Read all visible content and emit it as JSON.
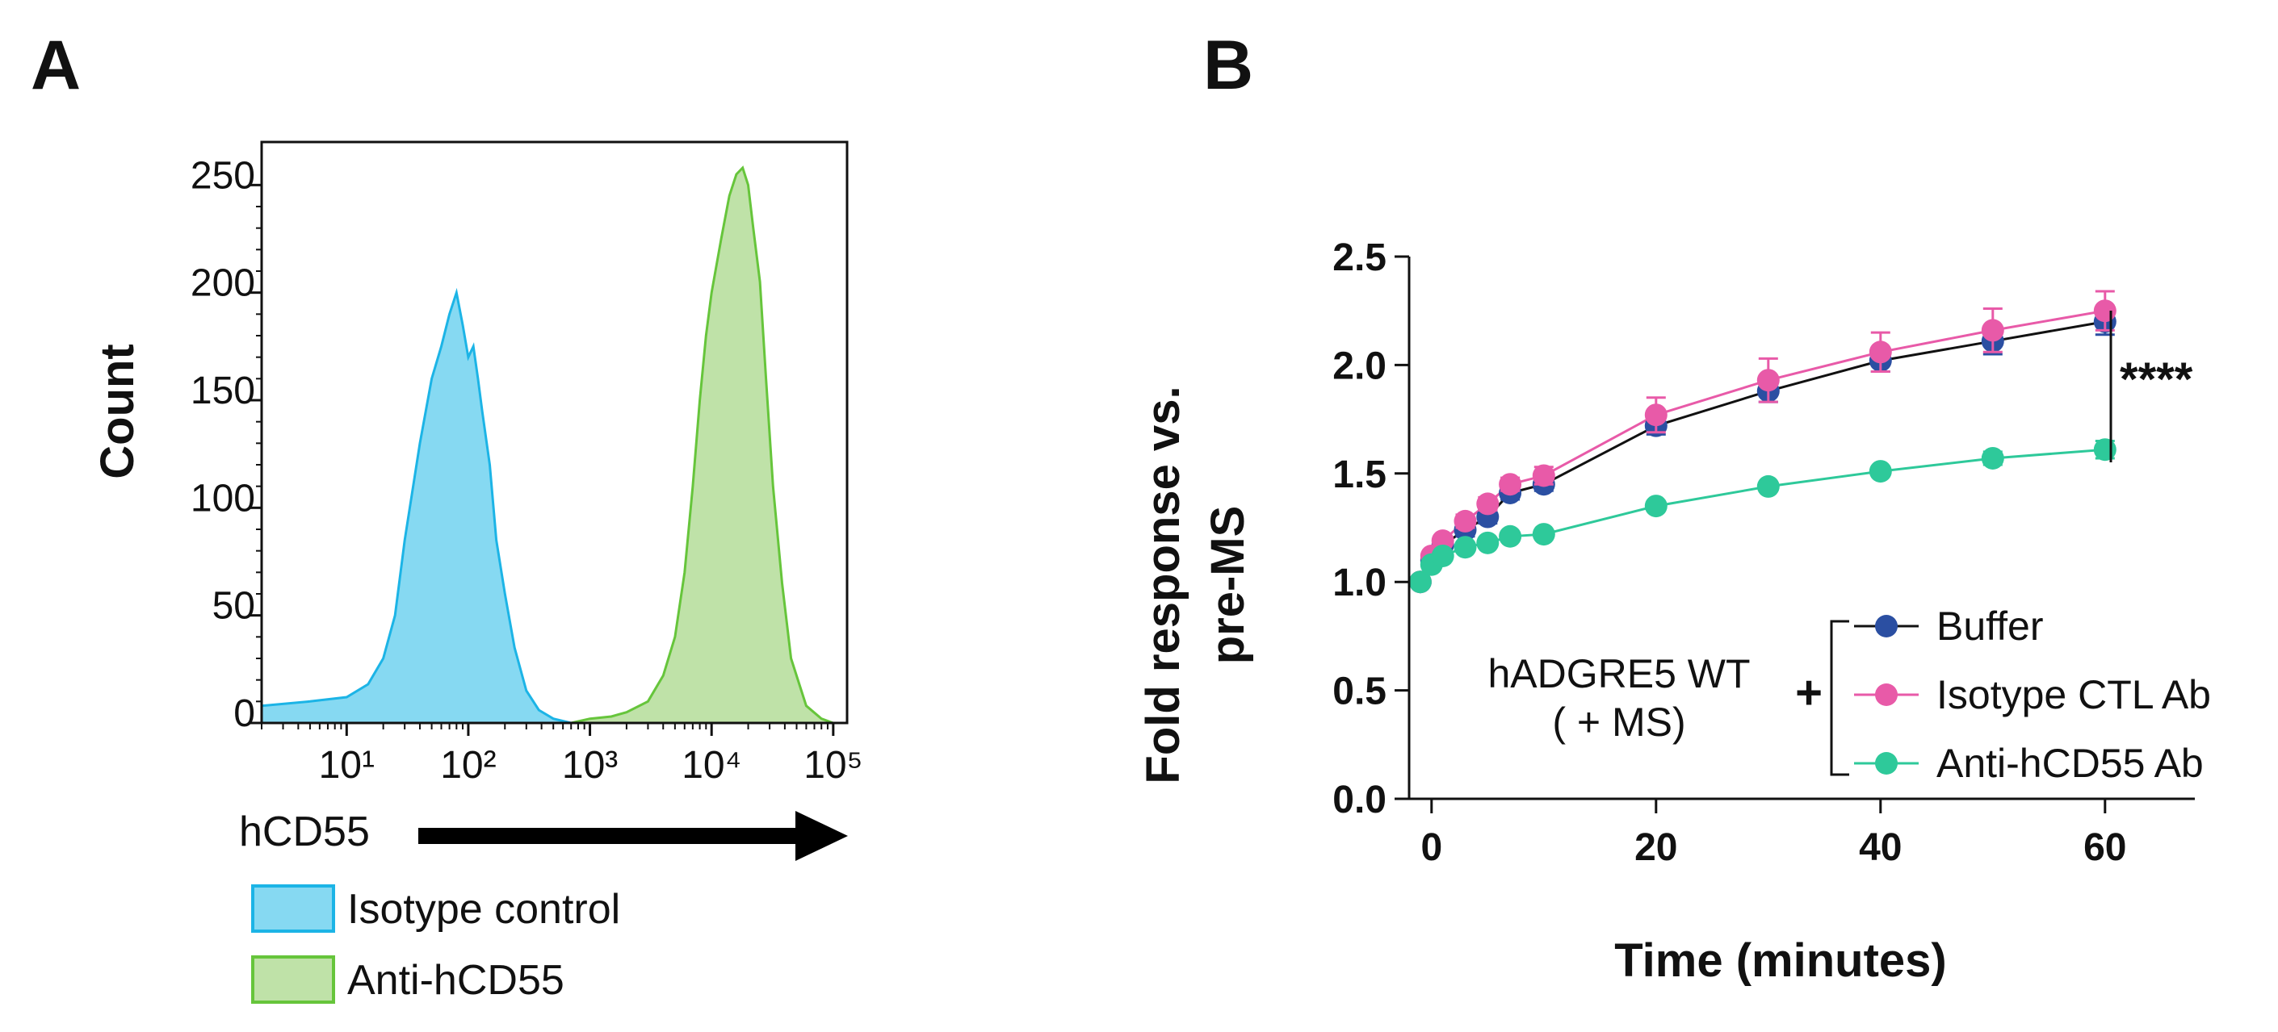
{
  "chart_data": [
    {
      "panel": "A",
      "type": "area",
      "title": "",
      "xlabel": "hCD55",
      "ylabel": "Count",
      "xscale": "log",
      "xlim": [
        2,
        130000
      ],
      "ylim": [
        0,
        270
      ],
      "x_ticks": [
        {
          "value": 10,
          "label": "10¹"
        },
        {
          "value": 100,
          "label": "10²"
        },
        {
          "value": 1000,
          "label": "10³"
        },
        {
          "value": 10000,
          "label": "10⁴"
        },
        {
          "value": 100000,
          "label": "10⁵"
        }
      ],
      "y_ticks": [
        {
          "value": 0,
          "label": "0"
        },
        {
          "value": 50,
          "label": "50"
        },
        {
          "value": 100,
          "label": "100"
        },
        {
          "value": 150,
          "label": "150"
        },
        {
          "value": 200,
          "label": "200"
        },
        {
          "value": 250,
          "label": "250"
        }
      ],
      "legend": "bottom-left",
      "series": [
        {
          "name": "Isotype control",
          "color": "#1cb4e6",
          "fill": "#86d9f2",
          "x": [
            2,
            5,
            10,
            15,
            20,
            25,
            30,
            40,
            50,
            60,
            70,
            80,
            90,
            100,
            110,
            120,
            130,
            150,
            170,
            200,
            240,
            300,
            380,
            500,
            700
          ],
          "y": [
            8,
            10,
            12,
            18,
            30,
            50,
            85,
            130,
            160,
            175,
            190,
            200,
            185,
            170,
            175,
            160,
            145,
            120,
            85,
            60,
            35,
            15,
            6,
            2,
            0
          ]
        },
        {
          "name": "Anti-hCD55",
          "color": "#66c53b",
          "fill": "#bfe2a8",
          "x": [
            700,
            1000,
            1500,
            2000,
            3000,
            4000,
            5000,
            6000,
            7000,
            8000,
            9000,
            10000,
            12000,
            14000,
            16000,
            18000,
            20000,
            22000,
            25000,
            28000,
            32000,
            38000,
            45000,
            60000,
            80000,
            100000
          ],
          "y": [
            0,
            2,
            3,
            5,
            10,
            22,
            40,
            70,
            110,
            150,
            180,
            200,
            225,
            245,
            255,
            258,
            250,
            230,
            205,
            160,
            110,
            65,
            30,
            8,
            2,
            0
          ]
        }
      ]
    },
    {
      "panel": "B",
      "type": "line",
      "title": "",
      "xlabel": "Time (minutes)",
      "ylabel_lines": [
        "Fold response vs.",
        "pre-MS"
      ],
      "xlim": [
        -2,
        68
      ],
      "ylim": [
        0,
        2.5
      ],
      "x_ticks": [
        0,
        20,
        40,
        60
      ],
      "y_ticks": [
        {
          "value": 0,
          "label": "0.0"
        },
        {
          "value": 0.5,
          "label": "0.5"
        },
        {
          "value": 1.0,
          "label": "1.0"
        },
        {
          "value": 1.5,
          "label": "1.5"
        },
        {
          "value": 2.0,
          "label": "2.0"
        },
        {
          "value": 2.5,
          "label": "2.5"
        }
      ],
      "legend": "bottom-right",
      "legend_group_label_lines": [
        "hADGRE5 WT",
        "( + MS)"
      ],
      "legend_group_plus": "+",
      "significance": "****",
      "series": [
        {
          "name": "Buffer",
          "color": "#2b4fa2",
          "line_color": "#111111",
          "x": [
            -1,
            0,
            1,
            3,
            5,
            7,
            10,
            20,
            30,
            40,
            50,
            60
          ],
          "y": [
            1.0,
            1.1,
            1.17,
            1.24,
            1.3,
            1.41,
            1.45,
            1.72,
            1.88,
            2.02,
            2.11,
            2.2
          ],
          "err": [
            0,
            0.02,
            0.02,
            0.03,
            0.03,
            0.03,
            0.03,
            0.04,
            0.05,
            0.05,
            0.06,
            0.06
          ]
        },
        {
          "name": "Isotype CTL Ab",
          "color": "#e85aa8",
          "line_color": "#e85aa8",
          "x": [
            -1,
            0,
            1,
            3,
            5,
            7,
            10,
            20,
            30,
            40,
            50,
            60
          ],
          "y": [
            1.0,
            1.12,
            1.19,
            1.28,
            1.36,
            1.45,
            1.49,
            1.77,
            1.93,
            2.06,
            2.16,
            2.25
          ],
          "err": [
            0,
            0.02,
            0.02,
            0.03,
            0.03,
            0.03,
            0.04,
            0.08,
            0.1,
            0.09,
            0.1,
            0.09
          ]
        },
        {
          "name": "Anti-hCD55 Ab",
          "color": "#2ec99a",
          "line_color": "#2ec99a",
          "x": [
            -1,
            0,
            1,
            3,
            5,
            7,
            10,
            20,
            30,
            40,
            50,
            60
          ],
          "y": [
            1.0,
            1.08,
            1.12,
            1.16,
            1.18,
            1.21,
            1.22,
            1.35,
            1.44,
            1.51,
            1.57,
            1.61
          ],
          "err": [
            0,
            0.02,
            0.02,
            0.02,
            0.02,
            0.02,
            0.02,
            0.02,
            0.02,
            0.02,
            0.03,
            0.04
          ]
        }
      ]
    }
  ]
}
